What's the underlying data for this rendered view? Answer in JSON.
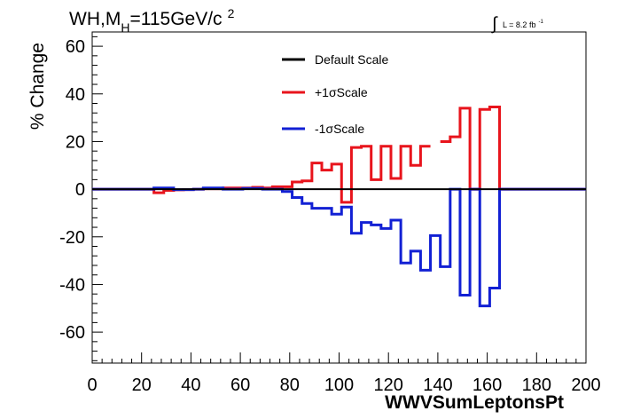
{
  "chart_data": {
    "type": "line",
    "title_main": "WH,M",
    "title_sub": "H",
    "title_rest": "=115GeV/c",
    "title_sup": "2",
    "lumi_label": "L = 8.2 fb",
    "lumi_sup": "-1",
    "lumi_integral": "∫",
    "xlabel": "WWVSumLeptonsPt",
    "ylabel": "% Change",
    "xlim": [
      0,
      200
    ],
    "ylim": [
      -73,
      66
    ],
    "x_ticks": [
      0,
      20,
      40,
      60,
      80,
      100,
      120,
      140,
      160,
      180,
      200
    ],
    "y_ticks": [
      -60,
      -40,
      -20,
      0,
      20,
      40,
      60
    ],
    "legend_position": "top-center",
    "series": [
      {
        "name": "Default Scale",
        "color": "#000000",
        "edges": [
          0,
          200
        ],
        "values": [
          0
        ]
      },
      {
        "name": "+1σScale",
        "color": "#e8141c",
        "edges": [
          0,
          25,
          29,
          33,
          37,
          41,
          45,
          49,
          53,
          57,
          61,
          65,
          69,
          73,
          77,
          81,
          85,
          89,
          93,
          97,
          101,
          105,
          109,
          113,
          117,
          121,
          125,
          129,
          133,
          137,
          141,
          145,
          149,
          153,
          157,
          161,
          165,
          200
        ],
        "values": [
          0,
          -1.5,
          -0.5,
          -0.3,
          -0.2,
          0,
          0.2,
          0.2,
          0.5,
          0.5,
          0.5,
          0.8,
          0.5,
          1,
          1,
          3,
          3.5,
          11,
          8,
          10.5,
          -5.5,
          17.5,
          18,
          4,
          18,
          4.5,
          18,
          10,
          18,
          null,
          20,
          22,
          34,
          0,
          33.5,
          34.5,
          0
        ]
      },
      {
        "name": "-1σScale",
        "color": "#1220d4",
        "edges": [
          0,
          25,
          29,
          33,
          37,
          41,
          45,
          49,
          53,
          57,
          61,
          65,
          69,
          73,
          77,
          81,
          85,
          89,
          93,
          97,
          101,
          105,
          109,
          113,
          117,
          121,
          125,
          129,
          133,
          137,
          141,
          145,
          149,
          153,
          157,
          161,
          165,
          200
        ],
        "values": [
          0,
          0.5,
          0.5,
          -0.2,
          -0.2,
          0,
          0.5,
          0.5,
          0,
          0,
          0.3,
          0.3,
          0,
          0,
          -1,
          -3.5,
          -6,
          -8,
          -8,
          -10.5,
          -7.5,
          -18.5,
          -14,
          -15,
          -16.5,
          -13,
          -31,
          -26,
          -34,
          -19.5,
          -32.5,
          0,
          -44.5,
          0,
          -49,
          -41.5,
          0
        ]
      }
    ]
  }
}
